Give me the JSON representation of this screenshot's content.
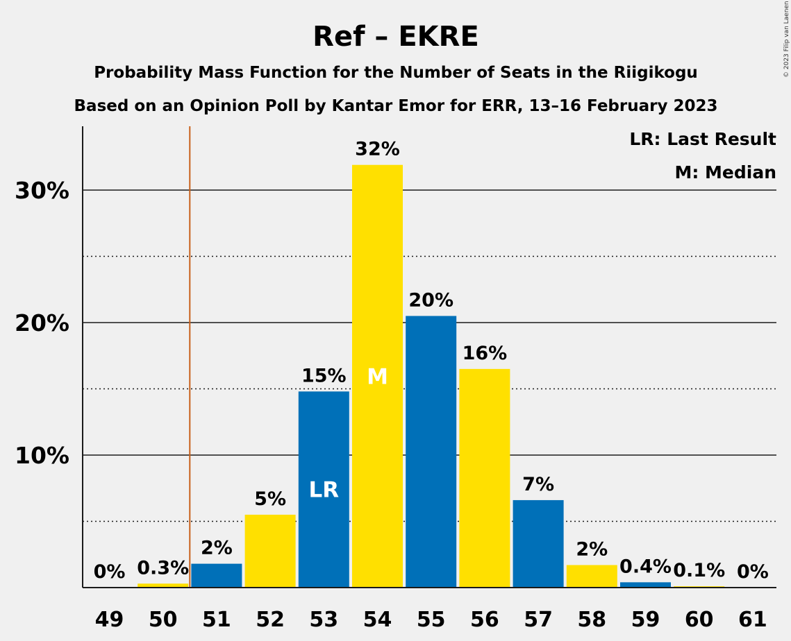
{
  "chart_data": {
    "type": "bar",
    "title": "Ref – EKRE",
    "subtitle": "Probability Mass Function for the Number of Seats in the Riigikogu",
    "subtitle2": "Based on an Opinion Poll by Kantar Emor for ERR, 13–16 February 2023",
    "copyright": "© 2023 Filip van Laenen",
    "xlabel": "",
    "ylabel": "",
    "ylim": [
      0,
      35
    ],
    "y_ticks": [
      {
        "value": 10,
        "label": "10%"
      },
      {
        "value": 20,
        "label": "20%"
      },
      {
        "value": 30,
        "label": "30%"
      }
    ],
    "y_minor_ticks": [
      5,
      15,
      25
    ],
    "grid": true,
    "categories": [
      "49",
      "50",
      "51",
      "52",
      "53",
      "54",
      "55",
      "56",
      "57",
      "58",
      "59",
      "60",
      "61"
    ],
    "values": [
      0,
      0.3,
      1.8,
      5.5,
      14.8,
      31.9,
      20.5,
      16.5,
      6.6,
      1.7,
      0.4,
      0.1,
      0
    ],
    "data_labels": [
      "0%",
      "0.3%",
      "2%",
      "5%",
      "15%",
      "32%",
      "20%",
      "16%",
      "7%",
      "2%",
      "0.4%",
      "0.1%",
      "0%"
    ],
    "bar_colors": [
      "#ffe000",
      "#ffe000",
      "#0070b8",
      "#ffe000",
      "#0070b8",
      "#ffe000",
      "#0070b8",
      "#ffe000",
      "#0070b8",
      "#ffe000",
      "#0070b8",
      "#ffe000",
      "#0070b8"
    ],
    "last_result": {
      "category": "53",
      "label": "LR",
      "line_between": [
        "50",
        "51"
      ],
      "line_color": "#c8601a"
    },
    "median": {
      "category": "54",
      "label": "M"
    },
    "legend": {
      "placement": "top-right",
      "items": [
        "LR: Last Result",
        "M: Median"
      ]
    }
  }
}
